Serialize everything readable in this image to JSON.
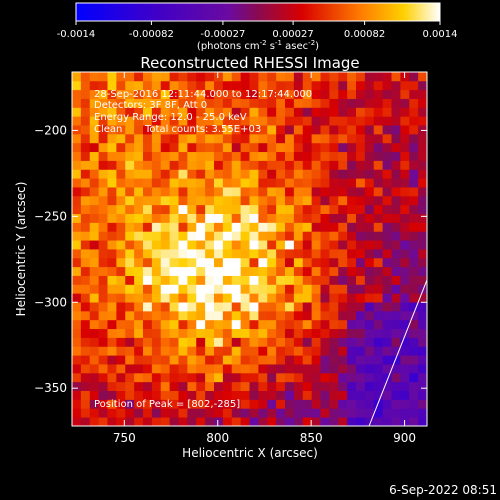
{
  "chart_data": {
    "type": "heatmap",
    "title": "Reconstructed RHESSI Image",
    "xlabel": "Heliocentric X (arcsec)",
    "ylabel": "Heliocentric Y (arcsec)",
    "xlim": [
      722,
      912
    ],
    "ylim": [
      -372,
      -166
    ],
    "xticks": [
      750,
      800,
      850,
      900
    ],
    "yticks": [
      -200,
      -250,
      -300,
      -350
    ],
    "colorbar": {
      "range": [
        -0.0014,
        0.0014
      ],
      "ticks": [
        "-0.0014",
        "-0.00082",
        "-0.00027",
        "0.00027",
        "0.00082",
        "0.0014"
      ],
      "unit_label": "(photons cm",
      "unit_sup1": "-2",
      "unit_mid1": " s",
      "unit_sup2": "-1",
      "unit_mid2": " asec",
      "unit_sup3": "-2",
      "unit_end": ")",
      "colormap": "blue-purple-red-yellow-white"
    },
    "annotations": {
      "time_range": "28-Sep-2016 12:11:44.000 to 12:17:44.000",
      "detectors": "Detectors: 3F 8F, Att 0",
      "energy": "Energy Range: 12.0 - 25.0 keV",
      "method": "Clean",
      "total_counts": "Total counts: 3.55E+03",
      "peak": "Position of Peak = [802,-285]"
    },
    "peak": {
      "x": 802,
      "y": -285
    },
    "limb_line": [
      [
        881,
        -372
      ],
      [
        912,
        -287
      ]
    ]
  },
  "footer": {
    "date": "6-Sep-2022 08:51"
  }
}
